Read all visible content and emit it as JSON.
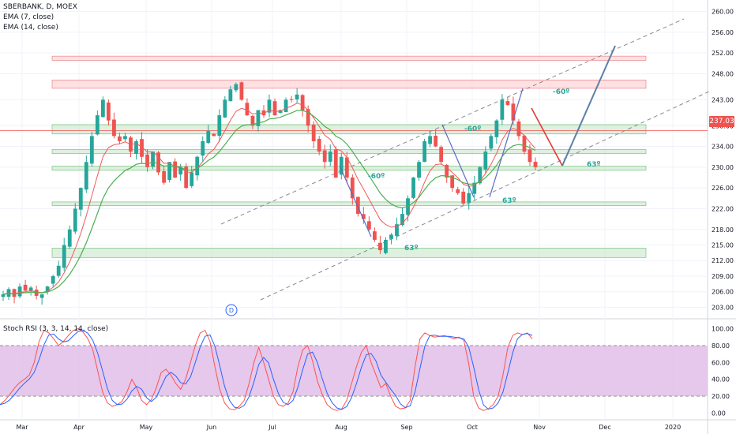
{
  "header": {
    "symbol_line": "SBERBANK, D, MOEX",
    "ema7": "EMA (7, close)",
    "ema14": "EMA (14, close)"
  },
  "indicator": {
    "title": "Stoch RSI (3, 3, 14, 14, close)"
  },
  "colors": {
    "up": "#26a69a",
    "down": "#ef5350",
    "ema_fast": "#f05a5a",
    "ema_slow": "#4caf50",
    "zone_green": "#c8e6c9",
    "zone_red": "#ffcdd2",
    "band": "#e1bee7",
    "k": "#2962ff",
    "d": "#ff5252",
    "dash": "#888888"
  },
  "chart_data": [
    {
      "type": "candlestick",
      "title": "SBERBANK, D, MOEX",
      "xlabel": "",
      "ylabel": "",
      "x_ticks": [
        "Mar",
        "Apr",
        "May",
        "Jun",
        "Jul",
        "Aug",
        "Sep",
        "Oct",
        "Nov",
        "Dec",
        "2020"
      ],
      "y_ticks": [
        "260.00",
        "256.00",
        "252.00",
        "248.00",
        "243.00",
        "238.00",
        "234.00",
        "230.00",
        "226.00",
        "222.00",
        "218.00",
        "215.00",
        "212.00",
        "209.00",
        "206.00",
        "203.00"
      ],
      "ylim": [
        202,
        261
      ],
      "last_price": "237.03",
      "series": [
        {
          "name": "EMA (7, close)"
        },
        {
          "name": "EMA (14, close)"
        }
      ],
      "close_path": [
        205.5,
        206.5,
        205,
        207,
        206.2,
        206.8,
        205.2,
        205.5,
        207,
        209,
        211,
        215,
        218,
        222,
        226,
        231,
        236,
        240,
        243,
        239,
        236,
        235,
        236,
        233,
        235,
        232,
        230,
        233,
        229,
        227,
        231,
        228,
        230,
        226,
        229,
        232,
        235,
        237,
        236,
        240,
        243,
        245,
        246,
        243,
        240,
        238,
        241,
        240,
        243,
        240,
        241,
        243,
        243,
        244,
        241,
        238,
        235,
        233,
        231,
        233,
        228,
        232,
        228,
        224,
        221,
        220,
        218,
        216,
        214,
        216,
        217,
        219,
        221,
        224,
        228,
        231,
        235,
        236,
        234,
        231,
        228,
        226,
        225,
        223,
        225,
        227,
        230,
        233,
        236,
        239,
        243,
        242,
        239,
        236,
        233,
        231,
        230
      ],
      "annotations": [
        {
          "label": "-60º"
        },
        {
          "label": "-60º"
        },
        {
          "label": "-60º"
        },
        {
          "label": "63º"
        },
        {
          "label": "63º"
        },
        {
          "label": "63º"
        }
      ],
      "event_marker": "D"
    },
    {
      "type": "line",
      "title": "Stoch RSI (3, 3, 14, 14, close)",
      "y_ticks": [
        "100.00",
        "80.00",
        "60.00",
        "40.00",
        "20.00",
        "0.00"
      ],
      "ylim": [
        -8,
        108
      ],
      "band": [
        20,
        80
      ],
      "k": [
        10,
        15,
        22,
        30,
        36,
        40,
        45,
        60,
        85,
        98,
        95,
        88,
        80,
        85,
        92,
        98,
        100,
        96,
        88,
        75,
        50,
        25,
        12,
        8,
        10,
        14,
        25,
        40,
        30,
        15,
        10,
        16,
        30,
        48,
        52,
        45,
        35,
        28,
        40,
        60,
        80,
        95,
        98,
        85,
        55,
        28,
        12,
        5,
        4,
        8,
        15,
        35,
        60,
        78,
        60,
        40,
        20,
        10,
        8,
        12,
        25,
        55,
        75,
        80,
        62,
        38,
        22,
        10,
        5,
        3,
        5,
        15,
        35,
        55,
        72,
        80,
        60,
        45,
        30,
        35,
        20,
        8,
        5,
        6,
        15,
        55,
        88,
        95,
        92,
        90,
        91,
        92,
        90,
        88,
        90,
        86,
        58,
        20,
        6,
        3,
        5,
        10,
        20,
        45,
        78,
        92,
        95,
        93,
        95,
        88
      ]
    }
  ]
}
